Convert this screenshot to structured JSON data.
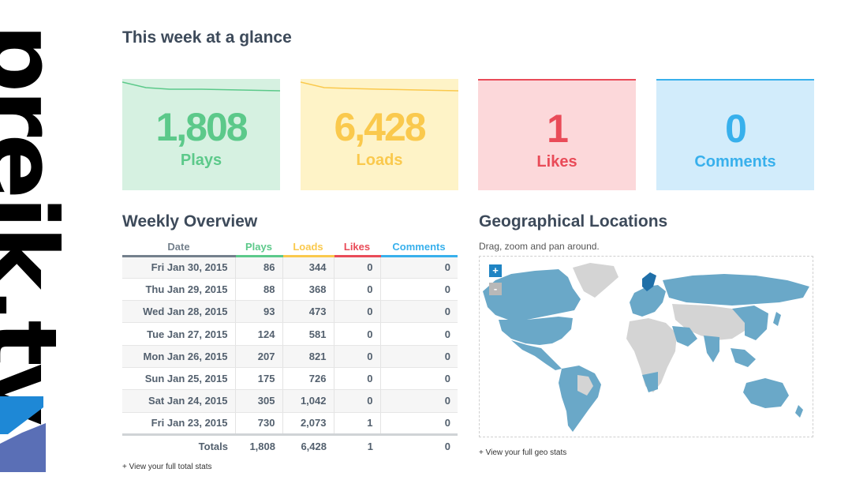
{
  "logo": {
    "text": "preik.tv"
  },
  "page": {
    "title": "This week at a glance"
  },
  "stats": [
    {
      "value": "1,808",
      "label": "Plays",
      "color": "#5cc98a",
      "bg": "#d6f1e1"
    },
    {
      "value": "6,428",
      "label": "Loads",
      "color": "#fac94d",
      "bg": "#fef3c7"
    },
    {
      "value": "1",
      "label": "Likes",
      "color": "#e94b58",
      "bg": "#fcd8da"
    },
    {
      "value": "0",
      "label": "Comments",
      "color": "#38b0ec",
      "bg": "#d2ecfb"
    }
  ],
  "weekly": {
    "title": "Weekly Overview",
    "headers": [
      "Date",
      "Plays",
      "Loads",
      "Likes",
      "Comments"
    ],
    "header_colors": [
      "#74808c",
      "#5cc98a",
      "#fac94d",
      "#e94b58",
      "#38b0ec"
    ],
    "rows": [
      [
        "Fri Jan 30, 2015",
        "86",
        "344",
        "0",
        "0"
      ],
      [
        "Thu Jan 29, 2015",
        "88",
        "368",
        "0",
        "0"
      ],
      [
        "Wed Jan 28, 2015",
        "93",
        "473",
        "0",
        "0"
      ],
      [
        "Tue Jan 27, 2015",
        "124",
        "581",
        "0",
        "0"
      ],
      [
        "Mon Jan 26, 2015",
        "207",
        "821",
        "0",
        "0"
      ],
      [
        "Sun Jan 25, 2015",
        "175",
        "726",
        "0",
        "0"
      ],
      [
        "Sat Jan 24, 2015",
        "305",
        "1,042",
        "0",
        "0"
      ],
      [
        "Fri Jan 23, 2015",
        "730",
        "2,073",
        "1",
        "0"
      ]
    ],
    "totals": [
      "Totals",
      "1,808",
      "6,428",
      "1",
      "0"
    ],
    "link": "+ View your full total stats"
  },
  "geo": {
    "title": "Geographical Locations",
    "subtitle": "Drag, zoom and pan around.",
    "zoom_in": "+",
    "zoom_out": "-",
    "link": "+ View your full geo stats",
    "colors": {
      "active": "#6aa8c8",
      "inactive": "#d4d4d4"
    }
  }
}
